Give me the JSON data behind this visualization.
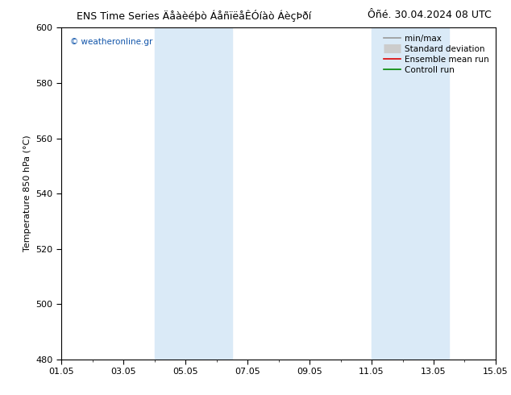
{
  "title_left": "ENS Time Series Äåàèéþò ÁåñïëåÊÓíàò ÁèçÞðí",
  "title_right": "Ôñé. 30.04.2024 08 UTC",
  "ylabel": "Temperature 850 hPa (°C)",
  "ylim": [
    480,
    600
  ],
  "yticks": [
    480,
    500,
    520,
    540,
    560,
    580,
    600
  ],
  "xlim": [
    0,
    14
  ],
  "xtick_labels": [
    "01.05",
    "03.05",
    "05.05",
    "07.05",
    "09.05",
    "11.05",
    "13.05",
    "15.05"
  ],
  "xtick_positions": [
    0,
    2,
    4,
    6,
    8,
    10,
    12,
    14
  ],
  "shading_bands": [
    {
      "xstart": 3.0,
      "xend": 5.5
    },
    {
      "xstart": 10.0,
      "xend": 12.5
    }
  ],
  "shading_color": "#daeaf7",
  "background_color": "#ffffff",
  "plot_bg_color": "#ffffff",
  "legend_items": [
    {
      "label": "min/max",
      "color": "#999999",
      "lw": 1.2,
      "type": "line"
    },
    {
      "label": "Standard deviation",
      "color": "#cccccc",
      "lw": 8,
      "type": "box"
    },
    {
      "label": "Ensemble mean run",
      "color": "#dd0000",
      "lw": 1.2,
      "type": "line"
    },
    {
      "label": "Controll run",
      "color": "#008800",
      "lw": 1.2,
      "type": "line"
    }
  ],
  "watermark": "© weatheronline.gr",
  "watermark_color": "#1155aa",
  "title_fontsize": 9,
  "legend_fontsize": 7.5,
  "axis_fontsize": 8,
  "tick_fontsize": 8
}
